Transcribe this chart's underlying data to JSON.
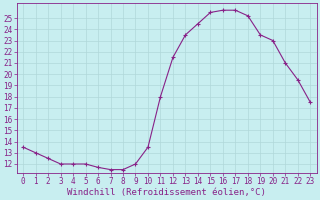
{
  "x": [
    0,
    1,
    2,
    3,
    4,
    5,
    6,
    7,
    8,
    9,
    10,
    11,
    12,
    13,
    14,
    15,
    16,
    17,
    18,
    19,
    20,
    21,
    22,
    23
  ],
  "y": [
    13.5,
    13.0,
    12.5,
    12.0,
    12.0,
    12.0,
    11.7,
    11.5,
    11.5,
    12.0,
    13.5,
    18.0,
    21.5,
    23.5,
    24.5,
    25.5,
    25.7,
    25.7,
    25.2,
    23.5,
    23.0,
    21.0,
    19.5,
    17.5
  ],
  "line_color": "#882288",
  "marker": "+",
  "bg_color": "#c8eef0",
  "grid_color": "#b0d8da",
  "xlabel": "Windchill (Refroidissement éolien,°C)",
  "ylabel_ticks": [
    12,
    13,
    14,
    15,
    16,
    17,
    18,
    19,
    20,
    21,
    22,
    23,
    24,
    25
  ],
  "ylim": [
    11.2,
    26.3
  ],
  "xlim": [
    -0.5,
    23.5
  ],
  "tick_color": "#882288",
  "label_color": "#882288",
  "xlabel_fontsize": 6.5,
  "tick_fontsize": 5.5,
  "figwidth": 3.2,
  "figheight": 2.0,
  "dpi": 100
}
